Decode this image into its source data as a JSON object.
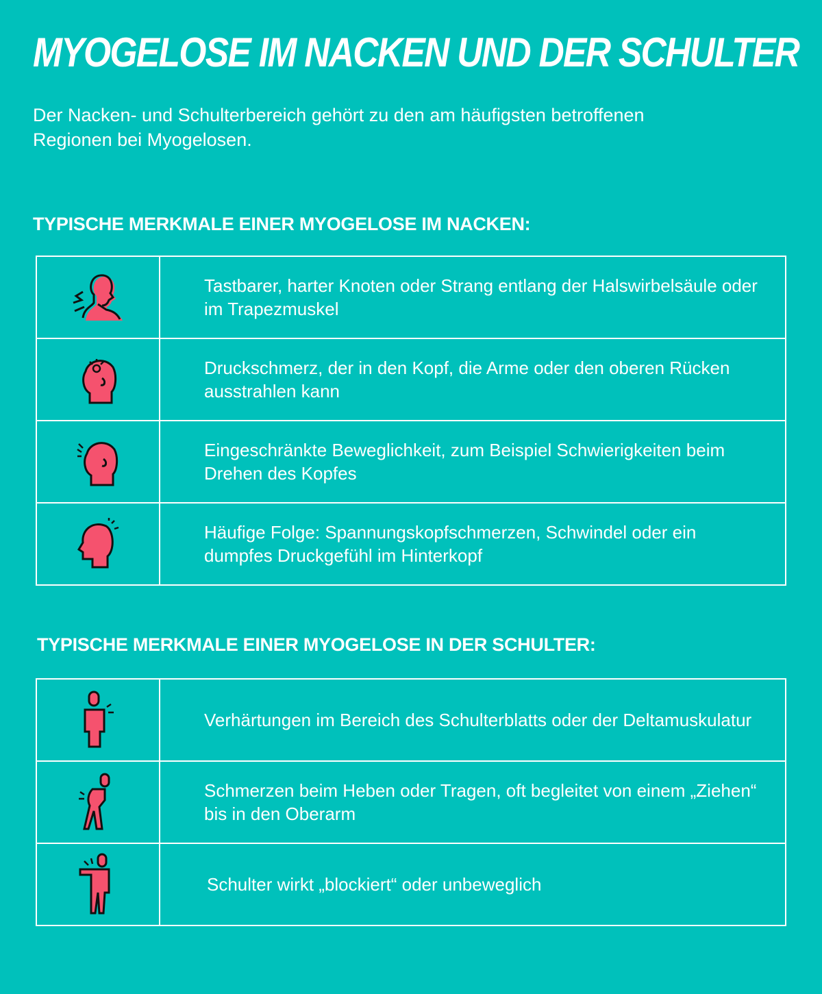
{
  "title": "MYOGELOSE IM NACKEN UND DER SCHULTER",
  "intro": "Der Nacken- und Schulterbereich gehört zu den am häufigsten betroffenen Regionen bei Myogelosen.",
  "colors": {
    "background": "#00c1bb",
    "icon_fill": "#f5526e",
    "text": "#ffffff"
  },
  "neck": {
    "heading": "TYPISCHE MERKMALE EINER MYOGELOSE IM NACKEN:",
    "rows": [
      {
        "icon": "neck-pain-icon",
        "text": "Tastbarer, harter Knoten oder Strang entlang der Halswirbelsäule oder im Trapezmuskel"
      },
      {
        "icon": "head-pressure-icon",
        "text": "Druckschmerz, der in den Kopf, die Arme oder den oberen Rücken ausstrahlen kann"
      },
      {
        "icon": "head-turn-icon",
        "text": "Eingeschränkte Beweglichkeit, zum Beispiel Schwierigkeiten beim Drehen des Kopfes"
      },
      {
        "icon": "headache-icon",
        "text": "Häufige Folge: Spannungskopfschmerzen, Schwindel oder ein dumpfes Druckgefühl im Hinterkopf"
      }
    ]
  },
  "shoulder": {
    "heading": "TYPISCHE MERKMALE EINER MYOGELOSE IN DER SCHULTER:",
    "rows": [
      {
        "icon": "shoulder-pain-icon",
        "text": "Verhärtungen im Bereich des Schulterblatts oder der Deltamuskulatur"
      },
      {
        "icon": "lifting-pain-icon",
        "text": "Schmerzen beim Heben oder Tragen, oft begleitet von einem „Ziehen“ bis in den Oberarm"
      },
      {
        "icon": "blocked-shoulder-icon",
        "text": "Schulter wirkt „blockiert“ oder unbeweglich"
      }
    ]
  }
}
